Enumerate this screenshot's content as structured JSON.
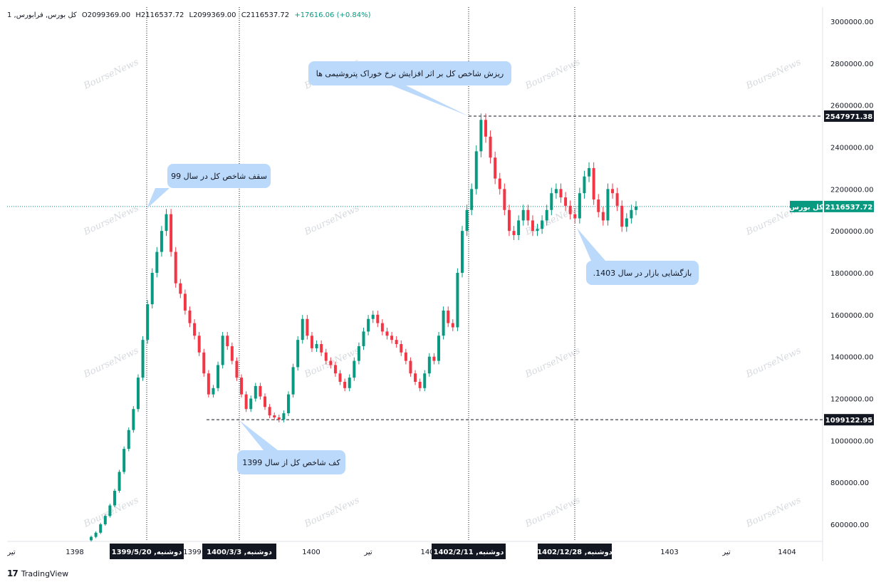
{
  "header": {
    "symbol": "1 ,کل بورس, فرابورس",
    "open": "O2099369.00",
    "high": "H2116537.72",
    "low": "L2099369.00",
    "close": "C2116537.72",
    "change": "+17616.06 (+0.84%)"
  },
  "brand": {
    "logo": "17",
    "name": "TradingView"
  },
  "watermark": "BourseNews",
  "colors": {
    "up": "#089981",
    "down": "#f23645",
    "bubble": "#bbd9fb",
    "label_bg": "#131722"
  },
  "chart_data": {
    "type": "candlestick",
    "y_axis": {
      "min": 520000,
      "max": 3060000,
      "ticks": [
        "3000000.00",
        "2800000.00",
        "2600000.00",
        "2400000.00",
        "2200000.00",
        "2000000.00",
        "1800000.00",
        "1600000.00",
        "1400000.00",
        "1200000.00",
        "1000000.00",
        "800000.00",
        "600000.00"
      ]
    },
    "x_axis": {
      "ticks": [
        "تیر",
        "1398",
        "1399",
        "1400",
        "تیر",
        "140",
        "1403",
        "تیر",
        "1404"
      ]
    },
    "date_labels": [
      "دوشنبه, 1399/5/20",
      "دوشنبه, 1400/3/3",
      "دوشنبه, 1402/2/11",
      "دوشنبه, 1402/12/28"
    ],
    "current_price": {
      "label": "کل بورس",
      "value": "2116537.72"
    },
    "levels": [
      {
        "label": "2547971.38",
        "value": 2547971.38
      },
      {
        "label": "1099122.95",
        "value": 1099122.95
      }
    ],
    "key_points": [
      {
        "x": "1399/5/20",
        "y": 2100000
      },
      {
        "x": "1400/3/3",
        "y": 1099122.95
      },
      {
        "x": "1402/2/11",
        "y": 2547971.38
      },
      {
        "x": "1402/12/28",
        "y": 2050000
      }
    ],
    "annotations": [
      "سقف شاخص کل در سال 99",
      "کف شاخص کل از سال 1399",
      "ریزش شاخص کل بر اثر افزایش نرخ خوراک پتروشیمی ها",
      "بازگشایی بازار در سال 1403."
    ],
    "close_series": [
      540000,
      560000,
      600000,
      640000,
      690000,
      760000,
      850000,
      960000,
      1050000,
      1150000,
      1300000,
      1480000,
      1650000,
      1800000,
      1900000,
      2000000,
      2080000,
      1900000,
      1750000,
      1700000,
      1620000,
      1560000,
      1500000,
      1420000,
      1320000,
      1220000,
      1250000,
      1360000,
      1500000,
      1450000,
      1380000,
      1300000,
      1220000,
      1150000,
      1200000,
      1260000,
      1210000,
      1160000,
      1120000,
      1110000,
      1100000,
      1130000,
      1220000,
      1350000,
      1480000,
      1580000,
      1500000,
      1440000,
      1460000,
      1420000,
      1380000,
      1360000,
      1320000,
      1280000,
      1250000,
      1300000,
      1380000,
      1450000,
      1520000,
      1580000,
      1600000,
      1560000,
      1520000,
      1500000,
      1480000,
      1460000,
      1420000,
      1380000,
      1320000,
      1280000,
      1250000,
      1320000,
      1400000,
      1380000,
      1500000,
      1620000,
      1560000,
      1540000,
      1800000,
      2000000,
      2100000,
      2200000,
      2380000,
      2530000,
      2450000,
      2350000,
      2250000,
      2200000,
      2100000,
      2000000,
      1980000,
      2050000,
      2100000,
      2050000,
      2000000,
      2010000,
      2050000,
      2100000,
      2180000,
      2200000,
      2160000,
      2120000,
      2080000,
      2060000,
      2180000,
      2260000,
      2300000,
      2150000,
      2090000,
      2050000,
      2200000,
      2180000,
      2120000,
      2020000,
      2060000,
      2100000,
      2116537.72
    ]
  }
}
